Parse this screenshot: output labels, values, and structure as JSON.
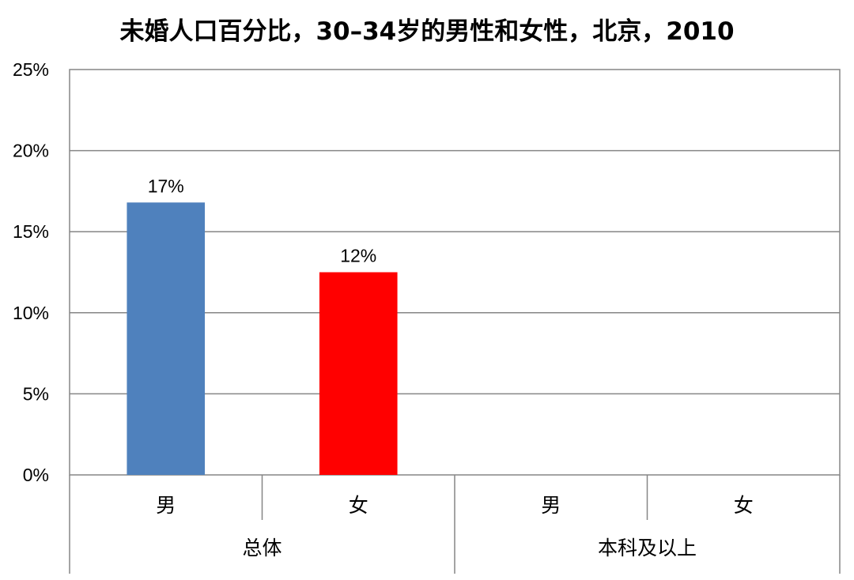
{
  "chart_data": {
    "type": "bar",
    "title": "未婚人口百分比，30–34岁的男性和女性，北京，2010",
    "xlabel": "",
    "ylabel": "",
    "ylim": [
      0,
      25
    ],
    "y_ticks": [
      "0%",
      "5%",
      "10%",
      "15%",
      "20%",
      "25%"
    ],
    "grid": true,
    "groups": [
      {
        "label": "总体",
        "categories": [
          "男",
          "女"
        ]
      },
      {
        "label": "本科及以上",
        "categories": [
          "男",
          "女"
        ]
      }
    ],
    "bars": [
      {
        "group": 0,
        "category": "男",
        "value": 16.8,
        "label": "17%",
        "color": "#4F81BD"
      },
      {
        "group": 0,
        "category": "女",
        "value": 12.5,
        "label": "12%",
        "color": "#FF0000"
      },
      {
        "group": 1,
        "category": "男",
        "value": null,
        "label": "",
        "color": "#4F81BD"
      },
      {
        "group": 1,
        "category": "女",
        "value": null,
        "label": "",
        "color": "#FF0000"
      }
    ]
  }
}
